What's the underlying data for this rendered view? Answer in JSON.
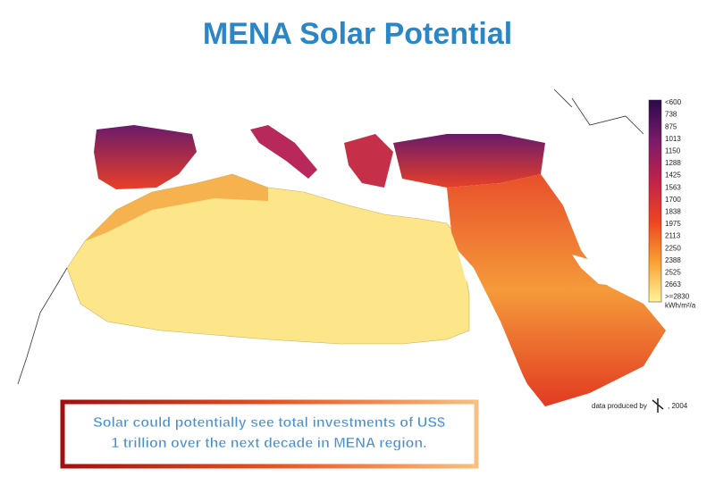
{
  "title": "MENA Solar Potential",
  "legend": {
    "labels": [
      "<600",
      "738",
      "875",
      "1013",
      "1150",
      "1288",
      "1425",
      "1563",
      "1700",
      "1838",
      "1975",
      "2113",
      "2250",
      "2388",
      "2525",
      "2663",
      ">=2830"
    ],
    "unit": "kWh/m²/a"
  },
  "credit": {
    "text": "data produced by",
    "year": ", 2004"
  },
  "caption": {
    "lines": [
      "Solar could potentially see total investments of US$",
      "1 trillion over the next decade in MENA region."
    ]
  }
}
